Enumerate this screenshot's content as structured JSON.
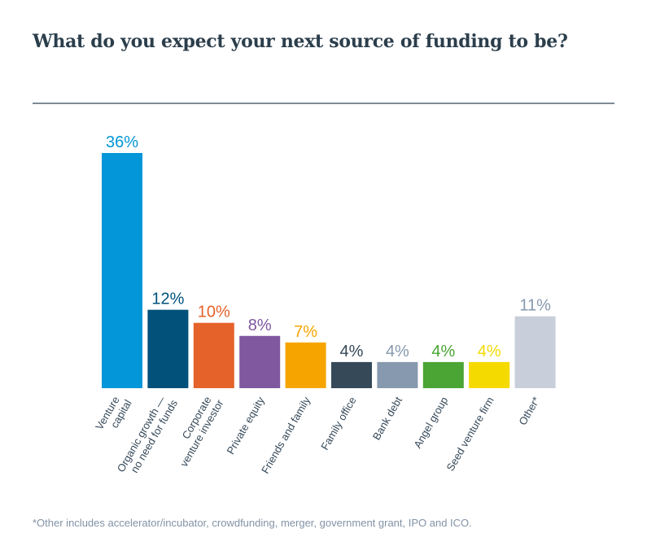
{
  "chart_data": {
    "type": "bar",
    "title": "What do you expect your next source of funding to be?",
    "categories": [
      [
        "Venture",
        "capital"
      ],
      [
        "Organic growth —",
        "no need for funds"
      ],
      [
        "Corporate",
        "venture investor"
      ],
      [
        "Private equity"
      ],
      [
        "Friends and family"
      ],
      [
        "Family office"
      ],
      [
        "Bank debt"
      ],
      [
        "Angel group"
      ],
      [
        "Seed venture firm"
      ],
      [
        "Other*"
      ]
    ],
    "values": [
      36,
      12,
      10,
      8,
      7,
      4,
      4,
      4,
      4,
      11
    ],
    "value_labels": [
      "36%",
      "12%",
      "10%",
      "8%",
      "7%",
      "4%",
      "4%",
      "4%",
      "4%",
      "11%"
    ],
    "colors": [
      "#0396d8",
      "#01517a",
      "#e5622a",
      "#7f58a0",
      "#f6a500",
      "#364959",
      "#8799ae",
      "#4aa534",
      "#f5da00",
      "#c8cfda"
    ],
    "label_colors": [
      "#0396d8",
      "#01517a",
      "#e5622a",
      "#7f58a0",
      "#f6a500",
      "#364959",
      "#8799ae",
      "#4aa534",
      "#f5da00",
      "#8799ae"
    ],
    "ylim": [
      0,
      36
    ],
    "grid": false,
    "footnote": "*Other includes accelerator/incubator, crowdfunding, merger, government grant, IPO and ICO."
  }
}
